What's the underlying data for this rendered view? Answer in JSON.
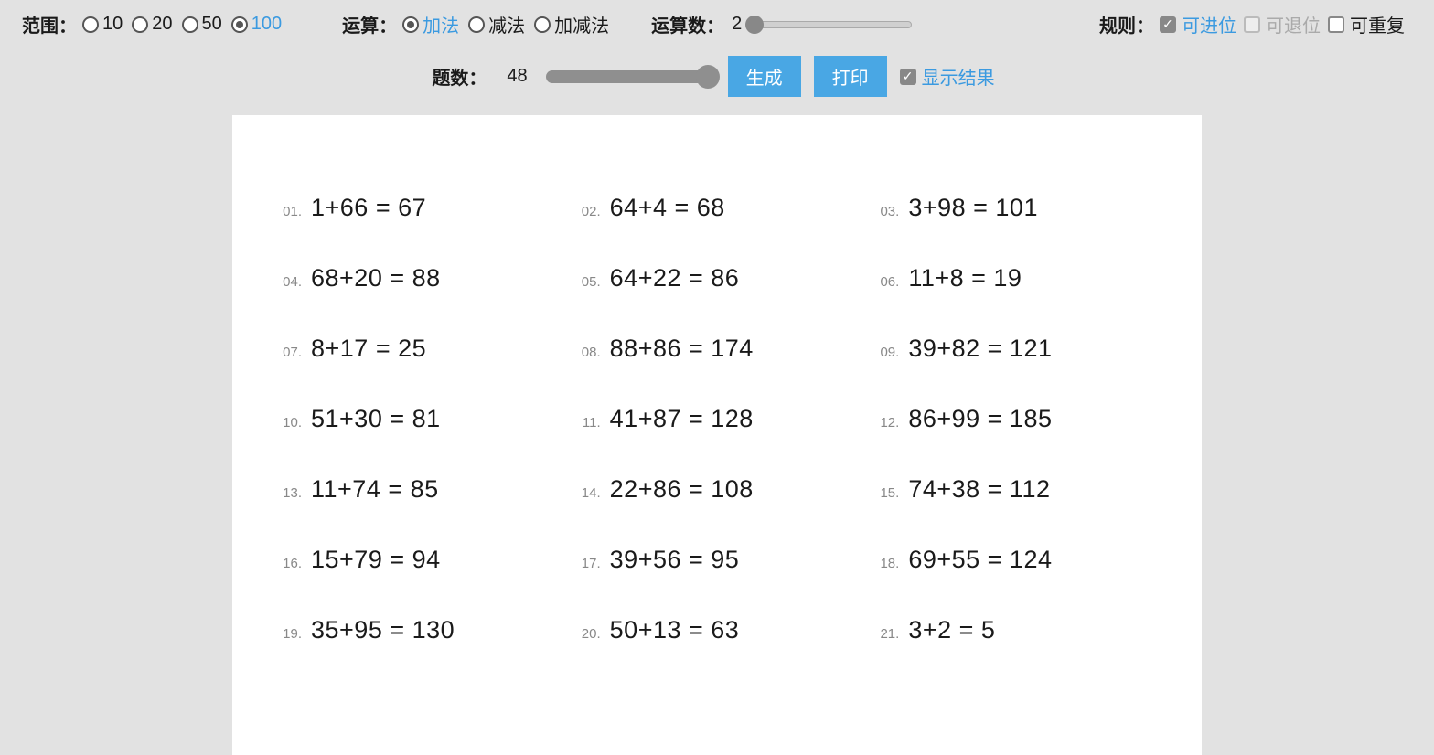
{
  "colors": {
    "accent": "#3b9ae0",
    "button": "#49a7e4",
    "bg": "#e2e2e2",
    "text": "#1a1a1a",
    "muted": "#888888"
  },
  "controls": {
    "range": {
      "label": "范围：",
      "options": [
        "10",
        "20",
        "50",
        "100"
      ],
      "selected": "100"
    },
    "operation": {
      "label": "运算：",
      "options": [
        "加法",
        "减法",
        "加减法"
      ],
      "selected": "加法"
    },
    "operand_count": {
      "label": "运算数：",
      "value": "2",
      "slider_percent": 4
    },
    "rules": {
      "label": "规则：",
      "carry": {
        "label": "可进位",
        "checked": true,
        "active": true
      },
      "borrow": {
        "label": "可退位",
        "checked": false,
        "disabled": true
      },
      "repeat": {
        "label": "可重复",
        "checked": false
      }
    },
    "count": {
      "label": "题数：",
      "value": "48",
      "slider_percent": 96
    },
    "buttons": {
      "generate": "生成",
      "print": "打印"
    },
    "show_result": {
      "label": "显示结果",
      "checked": true
    }
  },
  "problems": [
    {
      "num": "01.",
      "expr": "1+66 = 67"
    },
    {
      "num": "02.",
      "expr": "64+4 = 68"
    },
    {
      "num": "03.",
      "expr": "3+98 = 101"
    },
    {
      "num": "04.",
      "expr": "68+20 = 88"
    },
    {
      "num": "05.",
      "expr": "64+22 = 86"
    },
    {
      "num": "06.",
      "expr": "11+8 = 19"
    },
    {
      "num": "07.",
      "expr": "8+17 = 25"
    },
    {
      "num": "08.",
      "expr": "88+86 = 174"
    },
    {
      "num": "09.",
      "expr": "39+82 = 121"
    },
    {
      "num": "10.",
      "expr": "51+30 = 81"
    },
    {
      "num": "11.",
      "expr": "41+87 = 128"
    },
    {
      "num": "12.",
      "expr": "86+99 = 185"
    },
    {
      "num": "13.",
      "expr": "11+74 = 85"
    },
    {
      "num": "14.",
      "expr": "22+86 = 108"
    },
    {
      "num": "15.",
      "expr": "74+38 = 112"
    },
    {
      "num": "16.",
      "expr": "15+79 = 94"
    },
    {
      "num": "17.",
      "expr": "39+56 = 95"
    },
    {
      "num": "18.",
      "expr": "69+55 = 124"
    },
    {
      "num": "19.",
      "expr": "35+95 = 130"
    },
    {
      "num": "20.",
      "expr": "50+13 = 63"
    },
    {
      "num": "21.",
      "expr": "3+2 = 5"
    }
  ]
}
